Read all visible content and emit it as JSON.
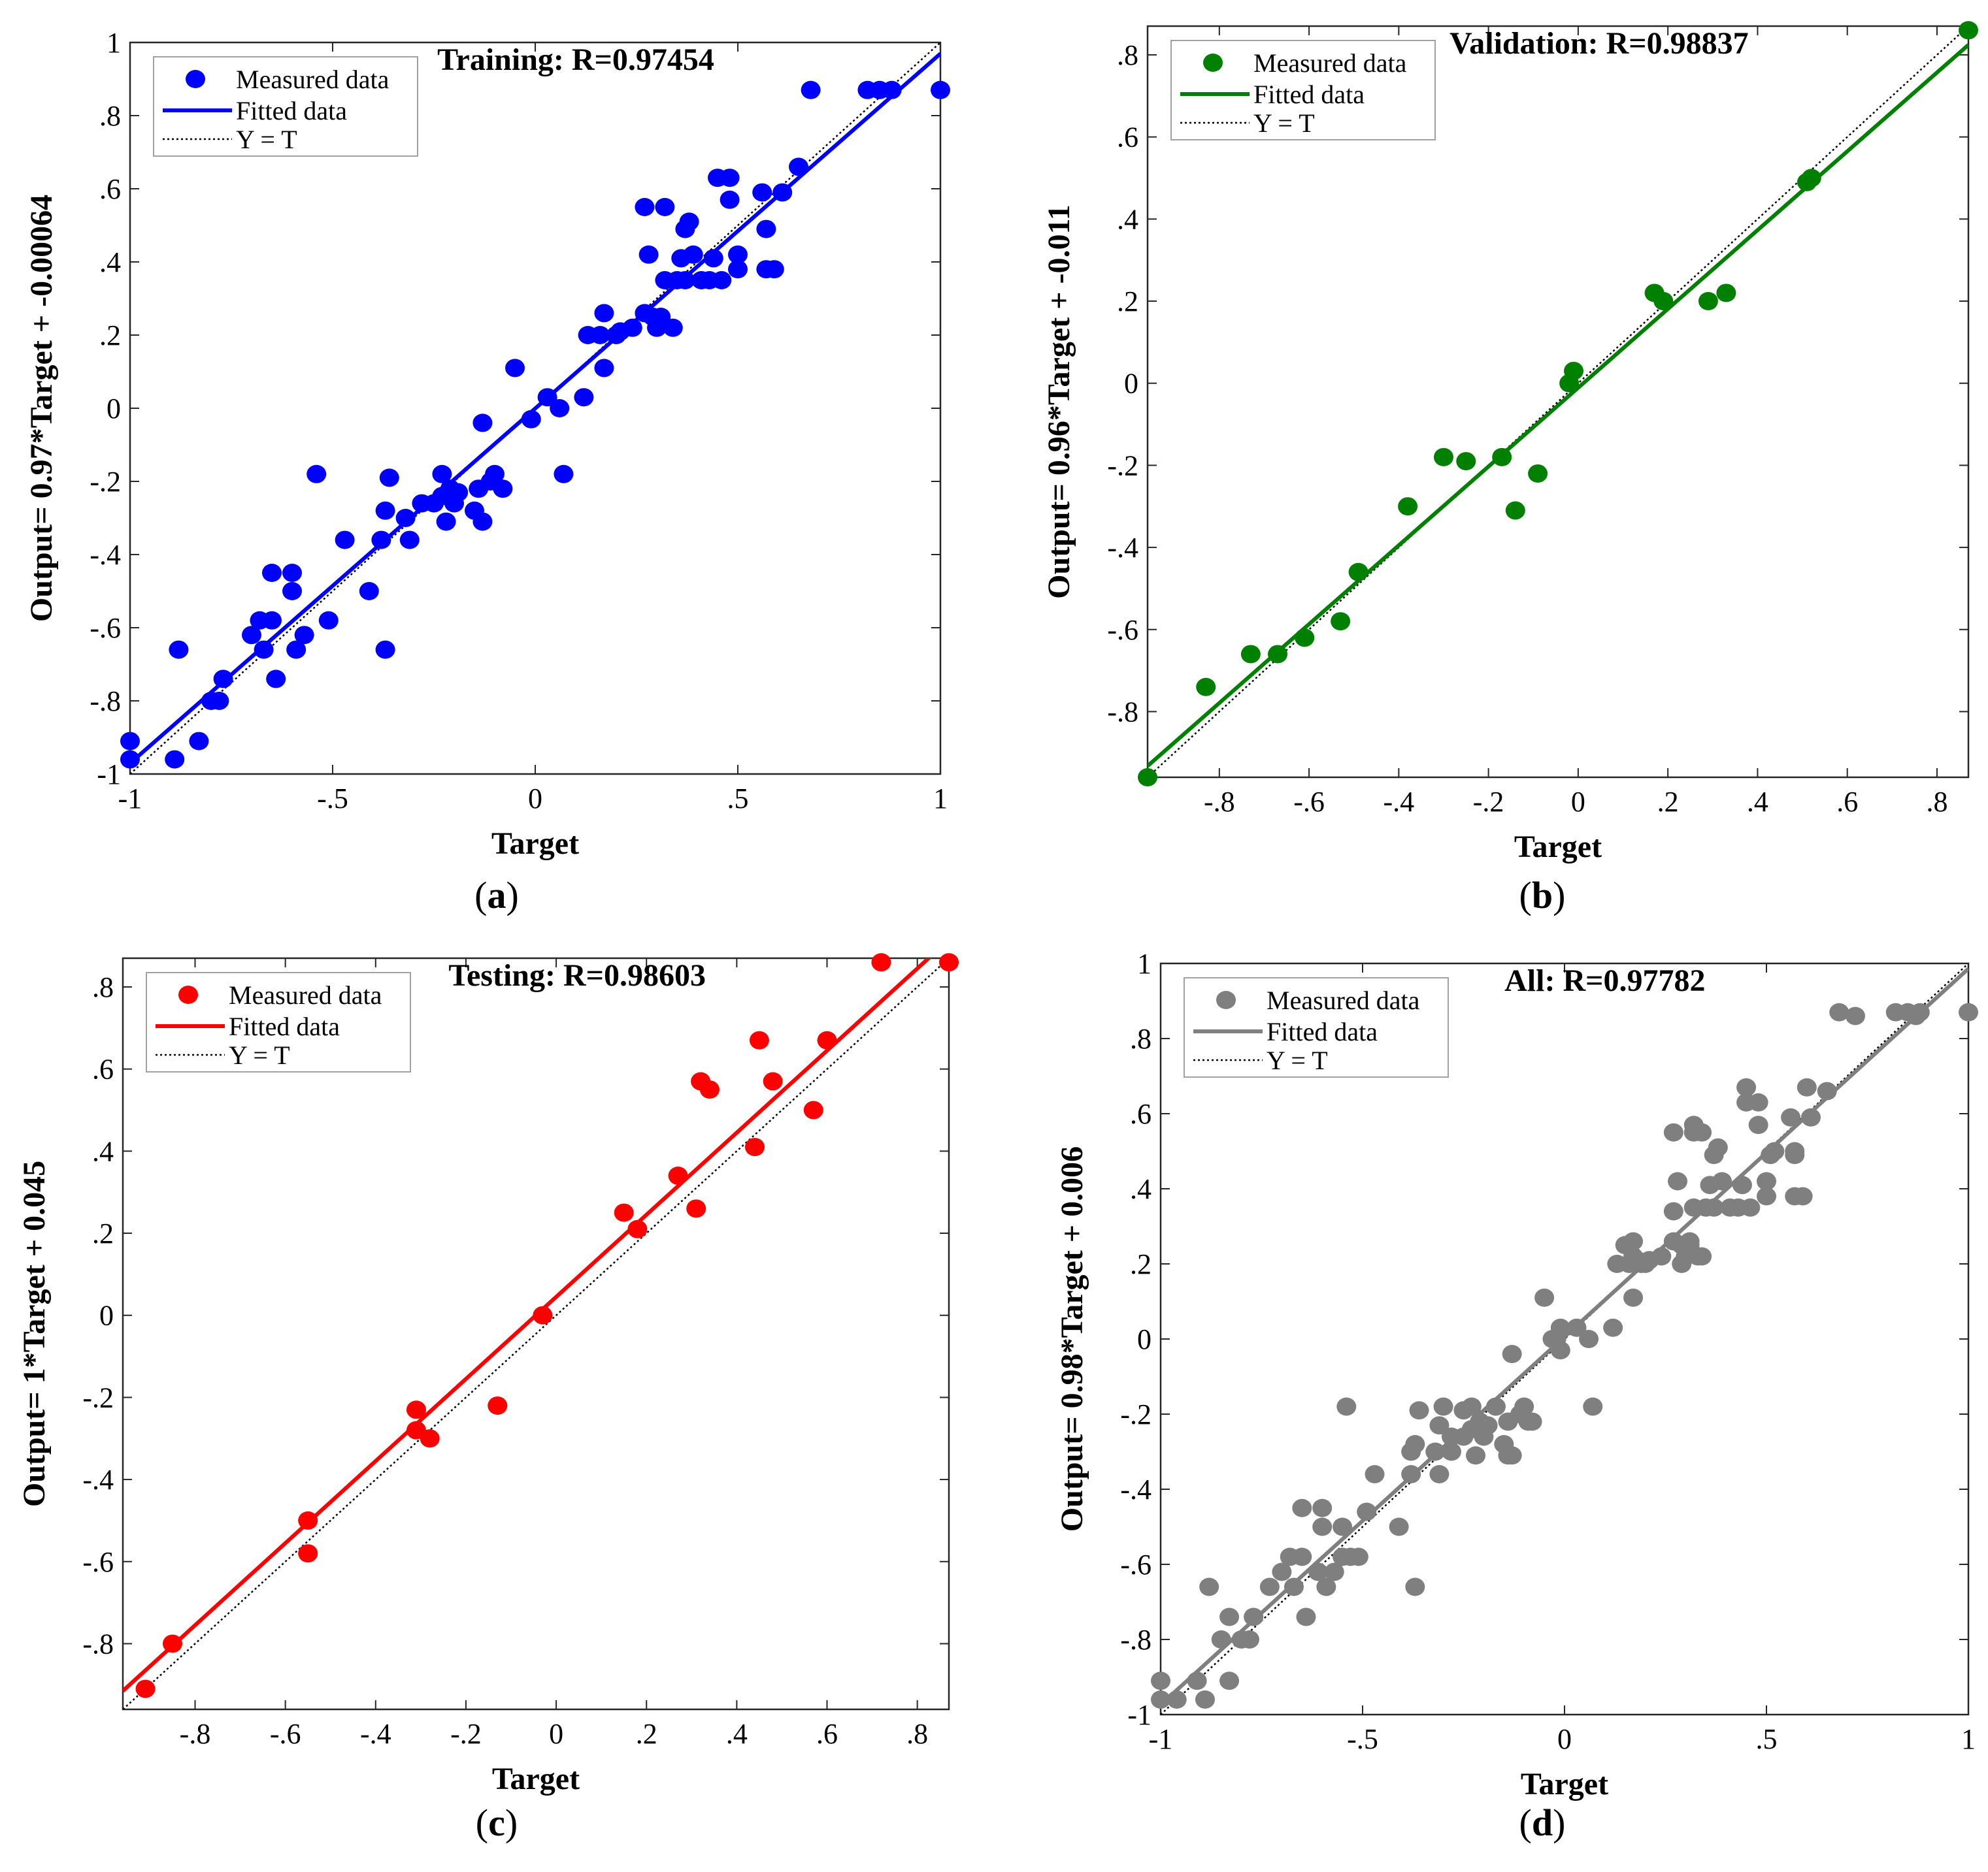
{
  "colors": {
    "training": "#0000ff",
    "validation": "#008000",
    "testing": "#ff0000",
    "all": "#7f7f7f",
    "identity": "#000000"
  },
  "chart_data": [
    {
      "id": "training",
      "type": "scatter",
      "caption_letter": "a",
      "title": "Training: R=0.97454",
      "xlabel": "Target",
      "ylabel": "Output= 0.97*Target + -0.00064",
      "xlim": [
        -1,
        1
      ],
      "ylim": [
        -1,
        1
      ],
      "xticks": [
        -1,
        -0.5,
        0,
        0.5,
        1
      ],
      "yticks": [
        -1,
        -0.8,
        -0.6,
        -0.4,
        -0.2,
        0,
        0.2,
        0.4,
        0.6,
        0.8,
        1
      ],
      "legend": [
        "Measured data",
        "Fitted data",
        "Y = T"
      ],
      "fit": {
        "slope": 0.97,
        "intercept": -0.00064
      },
      "points": [
        [
          -1,
          -0.91
        ],
        [
          -1,
          -0.96
        ],
        [
          -0.89,
          -0.96
        ],
        [
          -0.88,
          -0.66
        ],
        [
          -0.83,
          -0.91
        ],
        [
          -0.8,
          -0.8
        ],
        [
          -0.78,
          -0.8
        ],
        [
          -0.77,
          -0.74
        ],
        [
          -0.7,
          -0.62
        ],
        [
          -0.68,
          -0.58
        ],
        [
          -0.67,
          -0.66
        ],
        [
          -0.65,
          -0.58
        ],
        [
          -0.65,
          -0.45
        ],
        [
          -0.64,
          -0.74
        ],
        [
          -0.6,
          -0.45
        ],
        [
          -0.6,
          -0.5
        ],
        [
          -0.59,
          -0.66
        ],
        [
          -0.57,
          -0.62
        ],
        [
          -0.54,
          -0.18
        ],
        [
          -0.51,
          -0.58
        ],
        [
          -0.47,
          -0.36
        ],
        [
          -0.41,
          -0.5
        ],
        [
          -0.38,
          -0.36
        ],
        [
          -0.37,
          -0.28
        ],
        [
          -0.37,
          -0.66
        ],
        [
          -0.36,
          -0.19
        ],
        [
          -0.32,
          -0.3
        ],
        [
          -0.31,
          -0.36
        ],
        [
          -0.28,
          -0.26
        ],
        [
          -0.25,
          -0.26
        ],
        [
          -0.23,
          -0.24
        ],
        [
          -0.23,
          -0.18
        ],
        [
          -0.22,
          -0.31
        ],
        [
          -0.21,
          -0.22
        ],
        [
          -0.2,
          -0.26
        ],
        [
          -0.19,
          -0.23
        ],
        [
          -0.15,
          -0.28
        ],
        [
          -0.14,
          -0.22
        ],
        [
          -0.13,
          -0.04
        ],
        [
          -0.13,
          -0.31
        ],
        [
          -0.11,
          -0.2
        ],
        [
          -0.1,
          -0.18
        ],
        [
          -0.08,
          -0.22
        ],
        [
          -0.05,
          0.11
        ],
        [
          -0.01,
          -0.03
        ],
        [
          0.03,
          0.03
        ],
        [
          0.06,
          0.0
        ],
        [
          0.07,
          -0.18
        ],
        [
          0.12,
          0.03
        ],
        [
          0.13,
          0.2
        ],
        [
          0.16,
          0.2
        ],
        [
          0.17,
          0.26
        ],
        [
          0.17,
          0.11
        ],
        [
          0.2,
          0.2
        ],
        [
          0.21,
          0.21
        ],
        [
          0.24,
          0.22
        ],
        [
          0.27,
          0.26
        ],
        [
          0.27,
          0.55
        ],
        [
          0.28,
          0.42
        ],
        [
          0.29,
          0.25
        ],
        [
          0.3,
          0.22
        ],
        [
          0.31,
          0.25
        ],
        [
          0.32,
          0.55
        ],
        [
          0.32,
          0.35
        ],
        [
          0.34,
          0.22
        ],
        [
          0.35,
          0.35
        ],
        [
          0.36,
          0.41
        ],
        [
          0.37,
          0.49
        ],
        [
          0.37,
          0.35
        ],
        [
          0.38,
          0.51
        ],
        [
          0.39,
          0.42
        ],
        [
          0.41,
          0.35
        ],
        [
          0.43,
          0.35
        ],
        [
          0.44,
          0.41
        ],
        [
          0.45,
          0.63
        ],
        [
          0.46,
          0.35
        ],
        [
          0.48,
          0.63
        ],
        [
          0.48,
          0.57
        ],
        [
          0.5,
          0.42
        ],
        [
          0.5,
          0.38
        ],
        [
          0.56,
          0.59
        ],
        [
          0.57,
          0.38
        ],
        [
          0.57,
          0.49
        ],
        [
          0.59,
          0.38
        ],
        [
          0.61,
          0.59
        ],
        [
          0.65,
          0.66
        ],
        [
          0.68,
          0.87
        ],
        [
          0.82,
          0.87
        ],
        [
          0.85,
          0.87
        ],
        [
          0.88,
          0.87
        ],
        [
          1.0,
          0.87
        ]
      ]
    },
    {
      "id": "validation",
      "type": "scatter",
      "caption_letter": "b",
      "title": "Validation: R=0.98837",
      "xlabel": "Target",
      "ylabel": "Output= 0.96*Target + -0.011",
      "xlim": [
        -0.96,
        0.87
      ],
      "ylim": [
        -0.96,
        0.87
      ],
      "xticks": [
        -0.8,
        -0.6,
        -0.4,
        -0.2,
        0,
        0.2,
        0.4,
        0.6,
        0.8
      ],
      "yticks": [
        -0.8,
        -0.6,
        -0.4,
        -0.2,
        0,
        0.2,
        0.4,
        0.6,
        0.8
      ],
      "legend": [
        "Measured data",
        "Fitted data",
        "Y = T"
      ],
      "fit": {
        "slope": 0.96,
        "intercept": -0.011
      },
      "points": [
        [
          -0.96,
          -0.96
        ],
        [
          -0.83,
          -0.74
        ],
        [
          -0.73,
          -0.66
        ],
        [
          -0.67,
          -0.66
        ],
        [
          -0.61,
          -0.62
        ],
        [
          -0.53,
          -0.58
        ],
        [
          -0.49,
          -0.46
        ],
        [
          -0.38,
          -0.3
        ],
        [
          -0.3,
          -0.18
        ],
        [
          -0.25,
          -0.19
        ],
        [
          -0.17,
          -0.18
        ],
        [
          -0.14,
          -0.31
        ],
        [
          -0.09,
          -0.22
        ],
        [
          -0.02,
          0.0
        ],
        [
          -0.01,
          0.03
        ],
        [
          0.17,
          0.22
        ],
        [
          0.19,
          0.2
        ],
        [
          0.29,
          0.2
        ],
        [
          0.33,
          0.22
        ],
        [
          0.51,
          0.49
        ],
        [
          0.52,
          0.5
        ],
        [
          0.87,
          0.86
        ]
      ]
    },
    {
      "id": "testing",
      "type": "scatter",
      "caption_letter": "c",
      "title": "Testing: R=0.98603",
      "xlabel": "Target",
      "ylabel": "Output= 1*Target + 0.045",
      "xlim": [
        -0.96,
        0.87
      ],
      "ylim": [
        -0.96,
        0.87
      ],
      "xticks": [
        -0.8,
        -0.6,
        -0.4,
        -0.2,
        0,
        0.2,
        0.4,
        0.6,
        0.8
      ],
      "yticks": [
        -0.8,
        -0.6,
        -0.4,
        -0.2,
        0,
        0.2,
        0.4,
        0.6,
        0.8
      ],
      "legend": [
        "Measured data",
        "Fitted data",
        "Y = T"
      ],
      "fit": {
        "slope": 1.0,
        "intercept": 0.045
      },
      "points": [
        [
          -0.91,
          -0.91
        ],
        [
          -0.85,
          -0.8
        ],
        [
          -0.55,
          -0.5
        ],
        [
          -0.55,
          -0.58
        ],
        [
          -0.31,
          -0.23
        ],
        [
          -0.31,
          -0.28
        ],
        [
          -0.28,
          -0.3
        ],
        [
          -0.13,
          -0.22
        ],
        [
          -0.03,
          0.0
        ],
        [
          0.15,
          0.25
        ],
        [
          0.18,
          0.21
        ],
        [
          0.27,
          0.34
        ],
        [
          0.31,
          0.26
        ],
        [
          0.32,
          0.57
        ],
        [
          0.34,
          0.55
        ],
        [
          0.44,
          0.41
        ],
        [
          0.45,
          0.67
        ],
        [
          0.48,
          0.57
        ],
        [
          0.57,
          0.5
        ],
        [
          0.6,
          0.67
        ],
        [
          0.72,
          0.86
        ],
        [
          0.87,
          0.86
        ]
      ]
    },
    {
      "id": "all",
      "type": "scatter",
      "caption_letter": "d",
      "title": "All: R=0.97782",
      "xlabel": "Target",
      "ylabel": "Output= 0.98*Target + 0.006",
      "xlim": [
        -1,
        1
      ],
      "ylim": [
        -1,
        1
      ],
      "xticks": [
        -1,
        -0.5,
        0,
        0.5,
        1
      ],
      "yticks": [
        -1,
        -0.8,
        -0.6,
        -0.4,
        -0.2,
        0,
        0.2,
        0.4,
        0.6,
        0.8,
        1
      ],
      "legend": [
        "Measured data",
        "Fitted data",
        "Y = T"
      ],
      "fit": {
        "slope": 0.98,
        "intercept": 0.006
      },
      "points": [
        [
          -1,
          -0.91
        ],
        [
          -1,
          -0.96
        ],
        [
          -0.96,
          -0.96
        ],
        [
          -0.91,
          -0.91
        ],
        [
          -0.89,
          -0.96
        ],
        [
          -0.88,
          -0.66
        ],
        [
          -0.85,
          -0.8
        ],
        [
          -0.83,
          -0.91
        ],
        [
          -0.83,
          -0.74
        ],
        [
          -0.8,
          -0.8
        ],
        [
          -0.78,
          -0.8
        ],
        [
          -0.77,
          -0.74
        ],
        [
          -0.73,
          -0.66
        ],
        [
          -0.7,
          -0.62
        ],
        [
          -0.68,
          -0.58
        ],
        [
          -0.67,
          -0.66
        ],
        [
          -0.65,
          -0.58
        ],
        [
          -0.65,
          -0.45
        ],
        [
          -0.64,
          -0.74
        ],
        [
          -0.61,
          -0.62
        ],
        [
          -0.6,
          -0.45
        ],
        [
          -0.6,
          -0.5
        ],
        [
          -0.59,
          -0.66
        ],
        [
          -0.57,
          -0.62
        ],
        [
          -0.55,
          -0.5
        ],
        [
          -0.55,
          -0.58
        ],
        [
          -0.54,
          -0.18
        ],
        [
          -0.53,
          -0.58
        ],
        [
          -0.51,
          -0.58
        ],
        [
          -0.49,
          -0.46
        ],
        [
          -0.47,
          -0.36
        ],
        [
          -0.41,
          -0.5
        ],
        [
          -0.38,
          -0.36
        ],
        [
          -0.38,
          -0.3
        ],
        [
          -0.37,
          -0.28
        ],
        [
          -0.37,
          -0.66
        ],
        [
          -0.36,
          -0.19
        ],
        [
          -0.32,
          -0.3
        ],
        [
          -0.31,
          -0.36
        ],
        [
          -0.31,
          -0.23
        ],
        [
          -0.3,
          -0.18
        ],
        [
          -0.28,
          -0.26
        ],
        [
          -0.28,
          -0.3
        ],
        [
          -0.25,
          -0.26
        ],
        [
          -0.25,
          -0.19
        ],
        [
          -0.23,
          -0.24
        ],
        [
          -0.23,
          -0.18
        ],
        [
          -0.22,
          -0.31
        ],
        [
          -0.21,
          -0.22
        ],
        [
          -0.2,
          -0.26
        ],
        [
          -0.19,
          -0.23
        ],
        [
          -0.17,
          -0.18
        ],
        [
          -0.15,
          -0.28
        ],
        [
          -0.14,
          -0.22
        ],
        [
          -0.14,
          -0.31
        ],
        [
          -0.13,
          -0.04
        ],
        [
          -0.13,
          -0.31
        ],
        [
          -0.11,
          -0.2
        ],
        [
          -0.1,
          -0.18
        ],
        [
          -0.09,
          -0.22
        ],
        [
          -0.08,
          -0.22
        ],
        [
          -0.05,
          0.11
        ],
        [
          -0.03,
          0.0
        ],
        [
          -0.02,
          0.0
        ],
        [
          -0.01,
          -0.03
        ],
        [
          -0.01,
          0.03
        ],
        [
          0.03,
          0.03
        ],
        [
          0.06,
          0.0
        ],
        [
          0.07,
          -0.18
        ],
        [
          0.12,
          0.03
        ],
        [
          0.13,
          0.2
        ],
        [
          0.15,
          0.25
        ],
        [
          0.16,
          0.2
        ],
        [
          0.17,
          0.26
        ],
        [
          0.17,
          0.11
        ],
        [
          0.17,
          0.22
        ],
        [
          0.18,
          0.21
        ],
        [
          0.19,
          0.2
        ],
        [
          0.2,
          0.2
        ],
        [
          0.21,
          0.21
        ],
        [
          0.24,
          0.22
        ],
        [
          0.27,
          0.26
        ],
        [
          0.27,
          0.55
        ],
        [
          0.27,
          0.34
        ],
        [
          0.28,
          0.42
        ],
        [
          0.29,
          0.25
        ],
        [
          0.29,
          0.2
        ],
        [
          0.3,
          0.22
        ],
        [
          0.31,
          0.25
        ],
        [
          0.31,
          0.26
        ],
        [
          0.32,
          0.55
        ],
        [
          0.32,
          0.35
        ],
        [
          0.32,
          0.57
        ],
        [
          0.33,
          0.22
        ],
        [
          0.34,
          0.22
        ],
        [
          0.34,
          0.55
        ],
        [
          0.35,
          0.35
        ],
        [
          0.36,
          0.41
        ],
        [
          0.37,
          0.49
        ],
        [
          0.37,
          0.35
        ],
        [
          0.38,
          0.51
        ],
        [
          0.39,
          0.42
        ],
        [
          0.41,
          0.35
        ],
        [
          0.43,
          0.35
        ],
        [
          0.44,
          0.41
        ],
        [
          0.45,
          0.63
        ],
        [
          0.45,
          0.67
        ],
        [
          0.46,
          0.35
        ],
        [
          0.48,
          0.63
        ],
        [
          0.48,
          0.57
        ],
        [
          0.5,
          0.42
        ],
        [
          0.5,
          0.38
        ],
        [
          0.51,
          0.49
        ],
        [
          0.52,
          0.5
        ],
        [
          0.56,
          0.59
        ],
        [
          0.57,
          0.38
        ],
        [
          0.57,
          0.49
        ],
        [
          0.57,
          0.5
        ],
        [
          0.59,
          0.38
        ],
        [
          0.6,
          0.67
        ],
        [
          0.61,
          0.59
        ],
        [
          0.65,
          0.66
        ],
        [
          0.68,
          0.87
        ],
        [
          0.72,
          0.86
        ],
        [
          0.82,
          0.87
        ],
        [
          0.85,
          0.87
        ],
        [
          0.87,
          0.86
        ],
        [
          0.88,
          0.87
        ],
        [
          1.0,
          0.87
        ]
      ]
    }
  ]
}
